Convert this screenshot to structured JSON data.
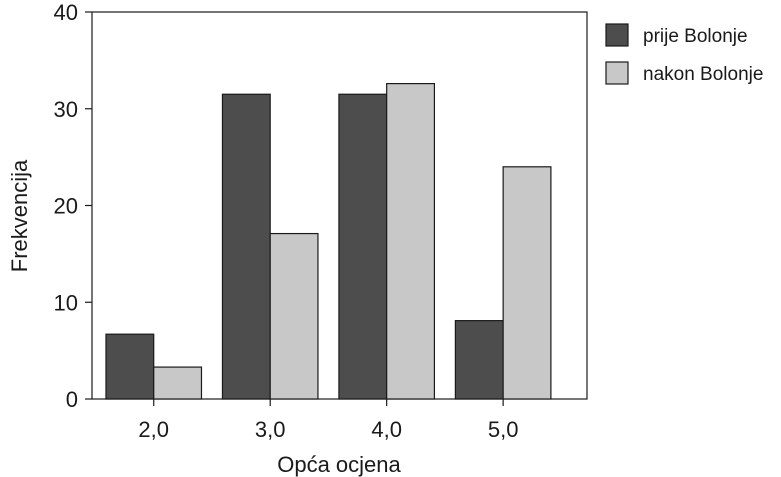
{
  "chart_data": {
    "type": "bar",
    "categories": [
      "2,0",
      "3,0",
      "4,0",
      "5,0"
    ],
    "series": [
      {
        "name": "prije Bolonje",
        "values": [
          6.7,
          31.5,
          31.5,
          8.1
        ],
        "color": "#4d4d4d"
      },
      {
        "name": "nakon Bolonje",
        "values": [
          3.3,
          17.1,
          32.6,
          24.0
        ],
        "color": "#c8c8c8"
      }
    ],
    "xlabel": "Opća ocjena",
    "ylabel": "Frekvencija",
    "ylim": [
      0,
      40
    ],
    "yticks": [
      0,
      10,
      20,
      30,
      40
    ],
    "grid": false,
    "legend_position": "top-right outside plot"
  }
}
